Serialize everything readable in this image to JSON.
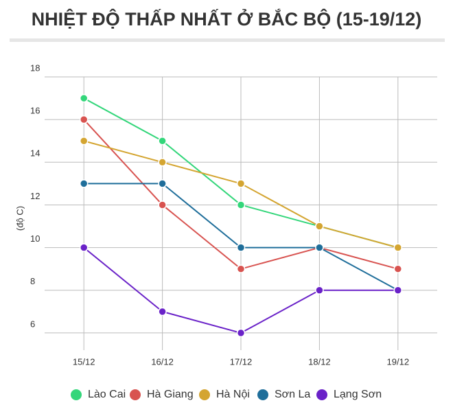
{
  "chart_data": {
    "type": "line",
    "title": "NHIỆT ĐỘ THẤP NHẤT Ở BẮC BỘ (15-19/12)",
    "y_label": "(độ C)",
    "categories": [
      "15/12",
      "16/12",
      "17/12",
      "18/12",
      "19/12"
    ],
    "series": [
      {
        "name": "Lào Cai",
        "color": "#33d67a",
        "values": [
          17,
          15,
          12,
          11,
          10
        ]
      },
      {
        "name": "Hà Giang",
        "color": "#d85350",
        "values": [
          16,
          12,
          9,
          10,
          9
        ]
      },
      {
        "name": "Hà Nội",
        "color": "#d4a531",
        "values": [
          15,
          14,
          13,
          11,
          10
        ]
      },
      {
        "name": "Sơn La",
        "color": "#1f6e9a",
        "values": [
          13,
          13,
          10,
          10,
          8
        ]
      },
      {
        "name": "Lạng Sơn",
        "color": "#6a22c8",
        "values": [
          10,
          7,
          6,
          8,
          8
        ]
      }
    ],
    "ylim": [
      5,
      18
    ],
    "yticks": [
      6,
      8,
      10,
      12,
      14,
      16,
      18
    ],
    "grid": true,
    "legend": "bottom"
  }
}
